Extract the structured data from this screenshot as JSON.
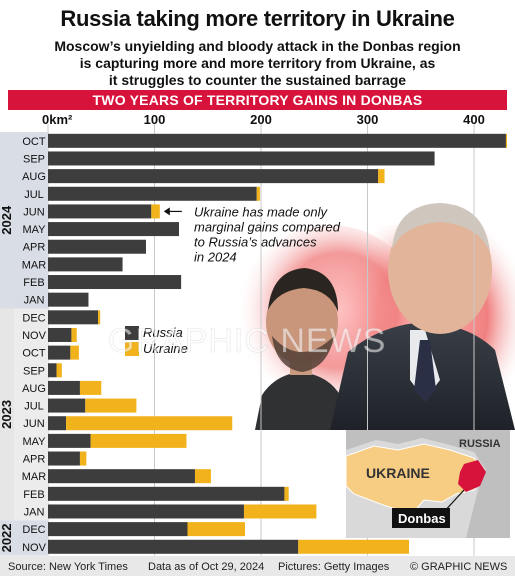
{
  "header": {
    "title": "Russia taking more territory in Ukraine",
    "subtitle_lines": [
      "Moscow’s unyielding and bloody attack in the Donbas region",
      "is capturing more and more territory from Ukraine, as",
      "it struggles to counter the sustained barrage"
    ],
    "banner": "TWO YEARS OF TERRITORY GAINS IN DONBAS"
  },
  "chart_data": {
    "type": "bar",
    "orientation": "horizontal",
    "stacked": true,
    "unit_label": "0km²",
    "xticks": [
      0,
      100,
      200,
      300,
      400
    ],
    "xlim": [
      0,
      430
    ],
    "categories": [
      "OCT",
      "SEP",
      "AUG",
      "JUL",
      "JUN",
      "MAY",
      "APR",
      "MAR",
      "FEB",
      "JAN",
      "DEC",
      "NOV",
      "OCT",
      "SEP",
      "AUG",
      "JUL",
      "JUN",
      "MAY",
      "APR",
      "MAR",
      "FEB",
      "JAN",
      "DEC",
      "NOV"
    ],
    "year_groups": [
      {
        "label": "2024",
        "start": 0,
        "end": 9
      },
      {
        "label": "2023",
        "start": 10,
        "end": 21
      },
      {
        "label": "2022",
        "start": 22,
        "end": 23
      }
    ],
    "series": [
      {
        "name": "Russia",
        "color": "#3d3d3d",
        "values": [
          430,
          363,
          310,
          196,
          97,
          123,
          92,
          70,
          125,
          38,
          47,
          22,
          21,
          8,
          30,
          35,
          17,
          40,
          30,
          138,
          222,
          184,
          131,
          235
        ]
      },
      {
        "name": "Ukraine",
        "color": "#f2b21b",
        "values": [
          1,
          0,
          6,
          3,
          8,
          0,
          0,
          0,
          0,
          0,
          2,
          5,
          8,
          5,
          20,
          48,
          156,
          90,
          6,
          15,
          4,
          68,
          54,
          104
        ]
      }
    ],
    "annotation": {
      "lines": [
        "Ukraine has made only",
        "marginal gains compared",
        "to Russia’s advances",
        "in 2024"
      ],
      "target_index": 4
    }
  },
  "map": {
    "country_label": "UKRAINE",
    "neighbor_label": "RUSSIA",
    "region_label": "Donbas",
    "colors": {
      "ukraine": "#f7cc83",
      "russia": "#bfbfbf",
      "donbas": "#d7123b"
    }
  },
  "watermark": "GRAPHIC NEWS",
  "footer": {
    "source": "Source: New York Times",
    "date": "Data as of Oct 29, 2024",
    "pictures": "Pictures: Getty Images",
    "credit": "© GRAPHIC NEWS"
  }
}
